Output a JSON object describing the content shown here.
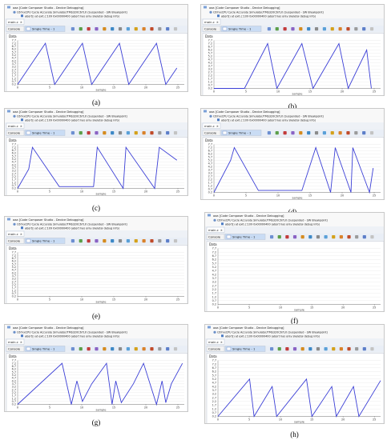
{
  "colors": {
    "trace": "#3b3fd6",
    "window_bg": "#f4f4f4",
    "plot_bg": "#ffffff",
    "tab_blue": "#c9dcf4",
    "toolbar_bg": "#e9eef6",
    "border": "#b9c3d3"
  },
  "common": {
    "app_title": "aaa [Code Composer Studio - Device Debugging]",
    "simulator_line": "C67xxCPU Cycle Accurate Simulator/TMS320C67LX (Suspended - SW Breakpoint)",
    "breakpoint_line": "abort() at exit.c:109 0x00000400  (abort has only skeletal debug info)",
    "file_tab": "main.c",
    "console_tab": "Console",
    "graph_tab": "Single Time - 1",
    "data_label": "Data",
    "x_label": "sample",
    "y_ticks": [
      "7.7",
      "7.2",
      "6.7",
      "6.2",
      "5.7",
      "5.2",
      "4.7",
      "4.2",
      "3.7",
      "3.2",
      "2.7",
      "2.2",
      "1.7",
      "1.2",
      "0.7",
      "0.2"
    ],
    "x_ticks": [
      "0",
      "5",
      "10",
      "15",
      "20",
      "25"
    ],
    "icons": [
      "window-icon",
      "breakpoint-icon",
      "grid-icon",
      "close-icon",
      "graph-icon",
      "toolbar-icons"
    ]
  },
  "panels": [
    {
      "caption": "(a)",
      "x": [
        0,
        30,
        40,
        70,
        80,
        110,
        120,
        150,
        160,
        172
      ],
      "y": [
        0.2,
        7.2,
        0.2,
        7.2,
        0.2,
        7.2,
        0.2,
        7.2,
        0.2,
        3.0
      ]
    },
    {
      "caption": "(b)",
      "x": [
        0,
        33,
        58,
        68,
        95,
        107,
        135,
        145,
        165,
        170
      ],
      "y": [
        0.2,
        0.2,
        7.2,
        0.2,
        7.2,
        0.2,
        7.2,
        0.2,
        6.2,
        0.2
      ]
    },
    {
      "caption": "(c)",
      "x": [
        0,
        12,
        16,
        45,
        47,
        82,
        86,
        114,
        117,
        148,
        153,
        172
      ],
      "y": [
        0.2,
        3.5,
        7.2,
        0.5,
        0.5,
        0.5,
        7.2,
        0.2,
        7.2,
        0.2,
        7.2,
        5.0
      ]
    },
    {
      "caption": "(d)",
      "x": [
        0,
        18,
        22,
        48,
        95,
        110,
        126,
        131,
        148,
        150,
        168,
        172
      ],
      "y": [
        0.2,
        5.2,
        7.2,
        0.5,
        0.5,
        7.2,
        0.2,
        7.2,
        0.2,
        7.2,
        0.2,
        4.0
      ]
    },
    {
      "caption": "(e)",
      "x": [],
      "y": []
    },
    {
      "caption": "(f)",
      "x": [],
      "y": []
    },
    {
      "caption": "(g)",
      "x": [
        0,
        48,
        58,
        64,
        70,
        80,
        96,
        102,
        106,
        112,
        125,
        136,
        150,
        156,
        160,
        166,
        178
      ],
      "y": [
        0.2,
        7.2,
        0.2,
        4.2,
        0.7,
        3.7,
        7.2,
        0.2,
        4.2,
        0.5,
        3.7,
        7.2,
        0.2,
        4.2,
        0.5,
        3.7,
        7.2
      ]
    },
    {
      "caption": "(h)",
      "x": [
        0,
        35,
        40,
        60,
        65,
        98,
        104,
        126,
        131,
        150,
        156,
        180
      ],
      "y": [
        0.2,
        5.2,
        0.2,
        4.2,
        0.2,
        5.2,
        0.2,
        4.2,
        0.2,
        4.2,
        0.2,
        5.0
      ]
    }
  ]
}
